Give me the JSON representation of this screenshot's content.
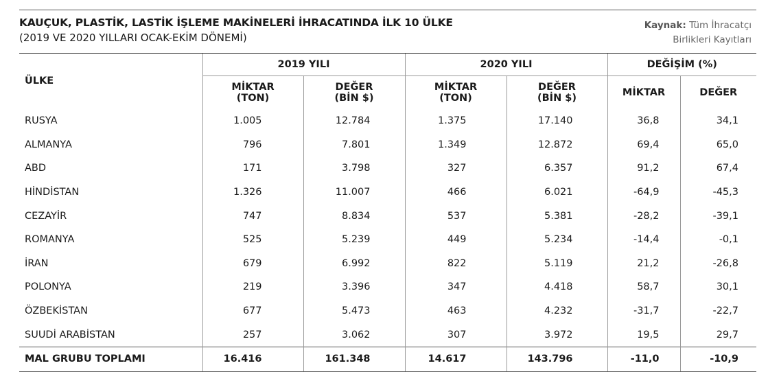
{
  "title": "KAUÇUK, PLASTİK, LASTİK İŞLEME MAKİNELERİ İHRACATINDA İLK 10 ÜLKE",
  "subtitle": "(2019 VE 2020 YILLARI OCAK-EKİM DÖNEMİ)",
  "source": {
    "label": "Kaynak:",
    "line1": "Tüm İhracatçı",
    "line2": "Birlikleri Kayıtları"
  },
  "headers": {
    "country": "ÜLKE",
    "year2019": "2019 YILI",
    "year2020": "2020 YILI",
    "change": "DEĞİŞİM (%)",
    "qty_line1": "MİKTAR",
    "qty_line2": "(TON)",
    "val_line1": "DEĞER",
    "val_line2": "(BİN $)",
    "chg_qty": "MİKTAR",
    "chg_val": "DEĞER"
  },
  "rows": [
    [
      "RUSYA",
      "1.005",
      "12.784",
      "1.375",
      "17.140",
      "36,8",
      "34,1"
    ],
    [
      "ALMANYA",
      "796",
      "7.801",
      "1.349",
      "12.872",
      "69,4",
      "65,0"
    ],
    [
      "ABD",
      "171",
      "3.798",
      "327",
      "6.357",
      "91,2",
      "67,4"
    ],
    [
      "HİNDİSTAN",
      "1.326",
      "11.007",
      "466",
      "6.021",
      "-64,9",
      "-45,3"
    ],
    [
      "CEZAYİR",
      "747",
      "8.834",
      "537",
      "5.381",
      "-28,2",
      "-39,1"
    ],
    [
      "ROMANYA",
      "525",
      "5.239",
      "449",
      "5.234",
      "-14,4",
      "-0,1"
    ],
    [
      "İRAN",
      "679",
      "6.992",
      "822",
      "5.119",
      "21,2",
      "-26,8"
    ],
    [
      "POLONYA",
      "219",
      "3.396",
      "347",
      "4.418",
      "58,7",
      "30,1"
    ],
    [
      "ÖZBEKİSTAN",
      "677",
      "5.473",
      "463",
      "4.232",
      "-31,7",
      "-22,7"
    ],
    [
      "SUUDİ ARABİSTAN",
      "257",
      "3.062",
      "307",
      "3.972",
      "19,5",
      "29,7"
    ]
  ],
  "total": [
    "MAL GRUBU TOPLAMI",
    "16.416",
    "161.348",
    "14.617",
    "143.796",
    "-11,0",
    "-10,9"
  ]
}
